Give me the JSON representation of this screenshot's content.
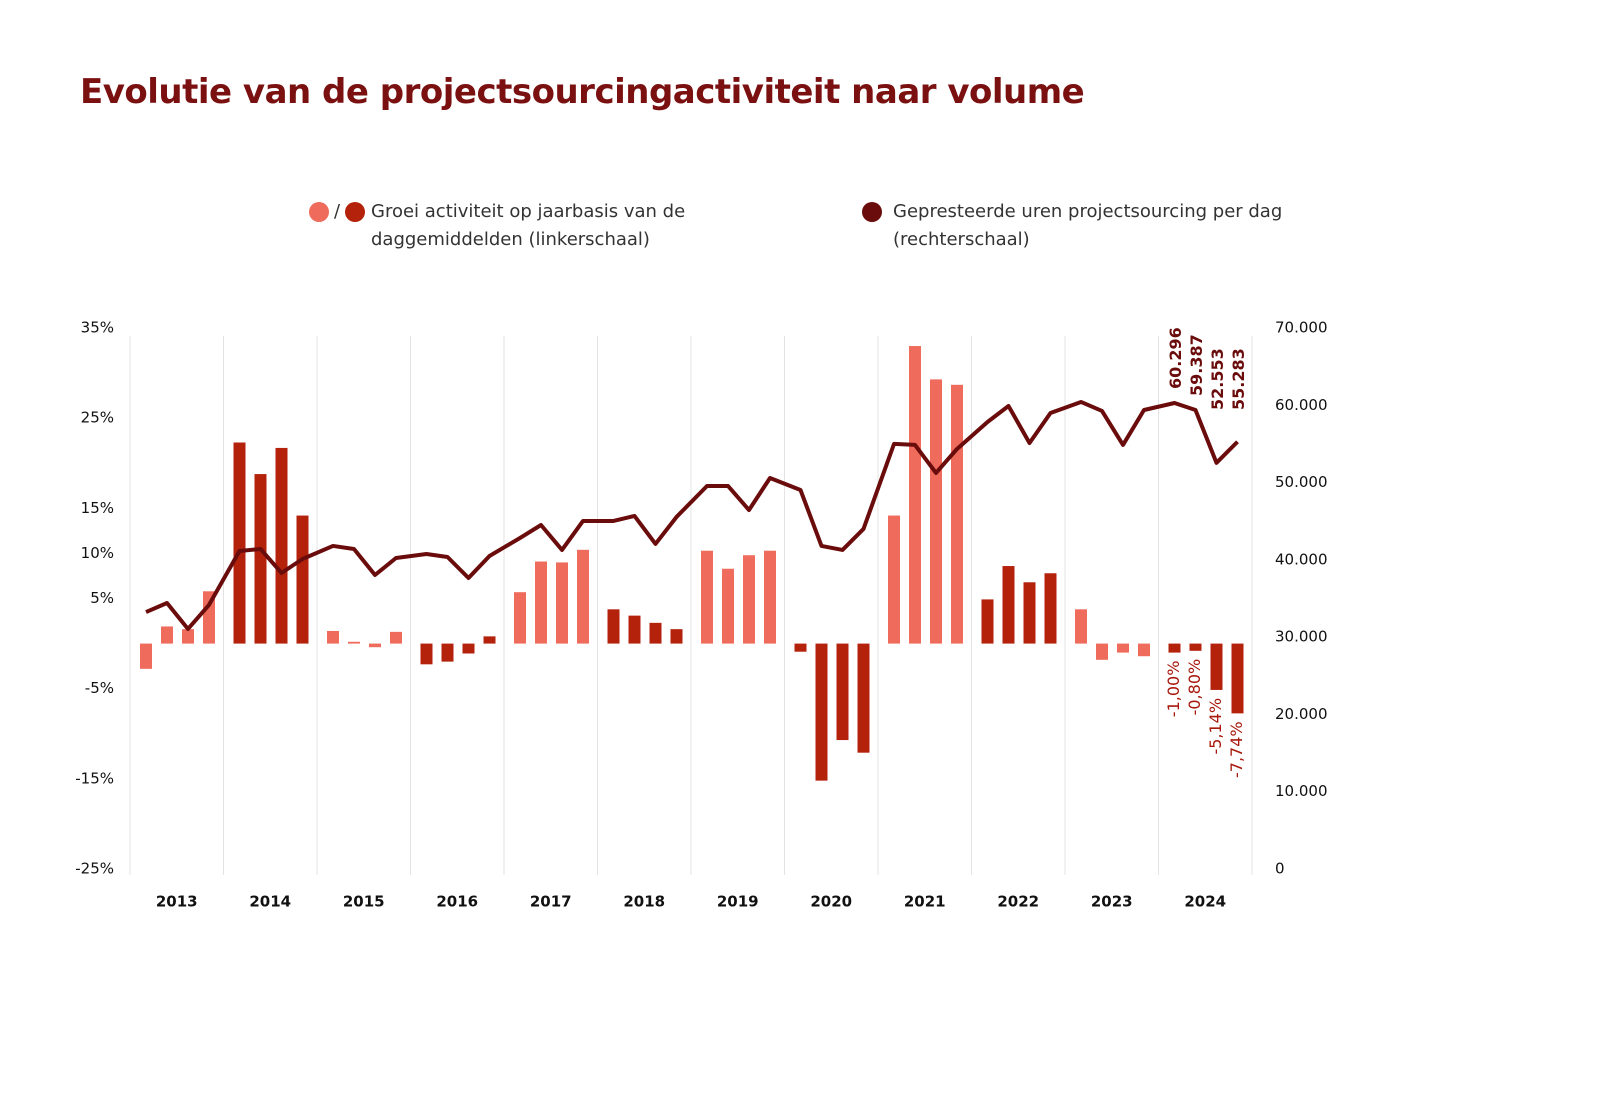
{
  "chart_data": {
    "type": "bar-line",
    "title": "Evolutie van de projectsourcingactiviteit naar volume",
    "legend_separator": "/",
    "categories": [
      "2013",
      "2014",
      "2015",
      "2016",
      "2017",
      "2018",
      "2019",
      "2020",
      "2021",
      "2022",
      "2023",
      "2024"
    ],
    "ylim": [
      -25,
      35
    ],
    "yticks": [
      {
        "value": 35,
        "label": "35%"
      },
      {
        "value": 25,
        "label": "25%"
      },
      {
        "value": 15,
        "label": "15%"
      },
      {
        "value": 10,
        "label": "10%"
      },
      {
        "value": 5,
        "label": "5%"
      },
      {
        "value": -5,
        "label": "-5%"
      },
      {
        "value": -15,
        "label": "-15%"
      },
      {
        "value": -25,
        "label": "-25%"
      }
    ],
    "y2lim": [
      0,
      70000
    ],
    "y2ticks": [
      {
        "value": 70000,
        "label": "70.000"
      },
      {
        "value": 60000,
        "label": "60.000"
      },
      {
        "value": 50000,
        "label": "50.000"
      },
      {
        "value": 40000,
        "label": "40.000"
      },
      {
        "value": 30000,
        "label": "30.000"
      },
      {
        "value": 20000,
        "label": "20.000"
      },
      {
        "value": 10000,
        "label": "10.000"
      },
      0
    ],
    "series": [
      {
        "name": "Groei activiteit op jaarbasis van de daggemiddelden (linkerschaal)",
        "type": "bar",
        "colors": [
          "#ef6b5b",
          "#b5220c"
        ],
        "label_color": "#a8180c",
        "values": [
          [
            -2.8,
            1.9,
            1.6,
            5.8
          ],
          [
            22.3,
            18.8,
            21.7,
            14.2
          ],
          [
            1.4,
            0.2,
            -0.4,
            1.3
          ],
          [
            -2.3,
            -2.0,
            -1.1,
            0.8
          ],
          [
            5.7,
            9.1,
            9.0,
            10.4
          ],
          [
            3.8,
            3.1,
            2.3,
            1.6
          ],
          [
            10.3,
            8.3,
            9.8,
            10.3
          ],
          [
            -0.9,
            -15.2,
            -10.7,
            -12.1
          ],
          [
            14.2,
            33.0,
            29.3,
            28.7
          ],
          [
            4.9,
            8.6,
            6.8,
            7.8
          ],
          [
            3.8,
            -1.8,
            -1.0,
            -1.4
          ],
          [
            -1.0,
            -0.8,
            -5.14,
            -7.74
          ]
        ],
        "value_labels": [
          [
            null,
            null,
            null,
            null
          ],
          [
            null,
            null,
            null,
            null
          ],
          [
            null,
            null,
            null,
            null
          ],
          [
            null,
            null,
            null,
            null
          ],
          [
            null,
            null,
            null,
            null
          ],
          [
            null,
            null,
            null,
            null
          ],
          [
            null,
            null,
            null,
            null
          ],
          [
            null,
            null,
            null,
            null
          ],
          [
            null,
            null,
            null,
            null
          ],
          [
            null,
            null,
            null,
            null
          ],
          [
            null,
            null,
            null,
            null
          ],
          [
            "-1,00%",
            "-0,80%",
            "-5,14%",
            "-7,74%"
          ]
        ]
      },
      {
        "name": "Gepresteerde uren projectsourcing per dag (rechterschaal)",
        "type": "line",
        "axis": "y2",
        "color": "#6b0c0c",
        "values": [
          [
            33250,
            34420,
            31060,
            34170
          ],
          [
            41150,
            41410,
            38300,
            40110
          ],
          [
            41800,
            41410,
            38040,
            40240
          ],
          [
            40760,
            40370,
            37650,
            40500
          ],
          [
            42830,
            44510,
            41280,
            45030
          ],
          [
            45030,
            45680,
            42060,
            45550
          ],
          [
            49560,
            49560,
            46450,
            50590
          ],
          [
            49040,
            41800,
            41280,
            44000
          ],
          [
            55000,
            54870,
            51240,
            54350
          ],
          [
            57840,
            59910,
            55120,
            59000
          ],
          [
            60430,
            59270,
            54870,
            59390
          ],
          [
            60296,
            59387,
            52553,
            55283
          ]
        ],
        "value_labels": [
          [
            null,
            null,
            null,
            null
          ],
          [
            null,
            null,
            null,
            null
          ],
          [
            null,
            null,
            null,
            null
          ],
          [
            null,
            null,
            null,
            null
          ],
          [
            null,
            null,
            null,
            null
          ],
          [
            null,
            null,
            null,
            null
          ],
          [
            null,
            null,
            null,
            null
          ],
          [
            null,
            null,
            null,
            null
          ],
          [
            null,
            null,
            null,
            null
          ],
          [
            null,
            null,
            null,
            null
          ],
          [
            null,
            null,
            null,
            null
          ],
          [
            "60.296",
            "59.387",
            "52.553",
            "55.283"
          ]
        ]
      }
    ]
  }
}
